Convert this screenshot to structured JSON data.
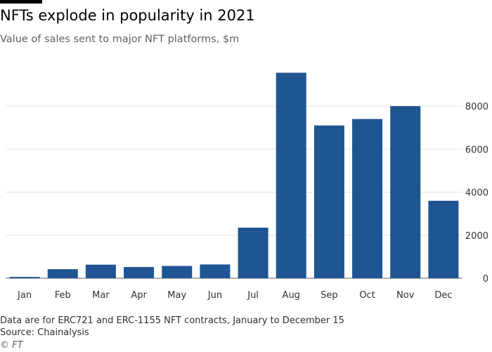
{
  "header": {
    "title": "NFTs explode in popularity in 2021",
    "subtitle": "Value of sales sent to major NFT platforms, $m"
  },
  "chart_data": {
    "type": "bar",
    "title": "NFTs explode in popularity in 2021",
    "subtitle": "Value of sales sent to major NFT platforms, $m",
    "categories": [
      "Jan",
      "Feb",
      "Mar",
      "Apr",
      "May",
      "Jun",
      "Jul",
      "Aug",
      "Sep",
      "Oct",
      "Nov",
      "Dec"
    ],
    "values": [
      60,
      420,
      630,
      520,
      570,
      640,
      2350,
      9550,
      7100,
      7400,
      8000,
      3600
    ],
    "xlabel": "",
    "ylabel": "",
    "ylim": [
      0,
      9600
    ],
    "yticks": [
      0,
      2000,
      4000,
      6000,
      8000
    ],
    "ytick_labels": [
      "0",
      "2000",
      "4000",
      "6000",
      "8000"
    ],
    "y_axis_position": "right",
    "grid": true,
    "bar_color": "#1f5592",
    "grid_color": "#e6e3de"
  },
  "footer": {
    "note": "Data are for ERC721 and ERC-1155 NFT contracts, January to December 15",
    "source": "Source: Chainalysis",
    "credit": "© FT"
  }
}
